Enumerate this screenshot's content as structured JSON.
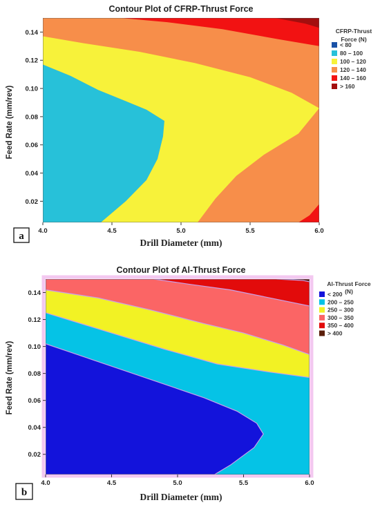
{
  "colors": {
    "c_blue": "#1a52a7",
    "c_cyan": "#27c1d9",
    "c_yellow": "#f7f23a",
    "c_orange": "#f78e4a",
    "c_red": "#f21212",
    "c_darkred": "#a30f0f",
    "a_blue": "#1313db",
    "a_cyan": "#05c3e6",
    "a_yellow": "#f2f224",
    "a_salmon": "#fb6565",
    "a_red": "#e20b0b",
    "a_brown": "#5a1e0a"
  },
  "chart_data": [
    {
      "type": "contour",
      "panel": "a",
      "title": "Contour Plot of CFRP-Thrust Force",
      "xlabel": "Drill Diameter (mm)",
      "ylabel": "Feed Rate (mm/rev)",
      "xlim": [
        4.0,
        6.0
      ],
      "ylim": [
        0.005,
        0.15
      ],
      "xticks": [
        "4.0",
        "4.5",
        "5.0",
        "5.5",
        "6.0"
      ],
      "yticks": [
        "0.02",
        "0.04",
        "0.06",
        "0.08",
        "0.10",
        "0.12",
        "0.14"
      ],
      "legend_title": [
        "CFRP-Thrust",
        "Force (N)"
      ],
      "legend": [
        {
          "range": "<  80",
          "color": "#1a52a7"
        },
        {
          "range": "80  –  100",
          "color": "#27c1d9"
        },
        {
          "range": "100  –  120",
          "color": "#f7f23a"
        },
        {
          "range": "120  –  140",
          "color": "#f78e4a"
        },
        {
          "range": "140  –  160",
          "color": "#f21212"
        },
        {
          "range": ">  160",
          "color": "#a30f0f"
        }
      ],
      "legend_placement": "right",
      "regions": [
        {
          "range": "80 – 100",
          "color": "#27c1d9",
          "boundary": [
            [
              4.0,
              0.117
            ],
            [
              4.2,
              0.109
            ],
            [
              4.4,
              0.099
            ],
            [
              4.6,
              0.091
            ],
            [
              4.75,
              0.085
            ],
            [
              4.88,
              0.077
            ],
            [
              4.87,
              0.066
            ],
            [
              4.83,
              0.05
            ],
            [
              4.75,
              0.035
            ],
            [
              4.6,
              0.02
            ],
            [
              4.42,
              0.005
            ],
            [
              4.0,
              0.005
            ]
          ]
        },
        {
          "range": "100 – 120",
          "color": "#f7f23a",
          "boundary": [
            [
              4.0,
              0.137
            ],
            [
              4.3,
              0.132
            ],
            [
              4.7,
              0.126
            ],
            [
              5.1,
              0.118
            ],
            [
              5.5,
              0.108
            ],
            [
              5.8,
              0.097
            ],
            [
              6.0,
              0.086
            ],
            [
              5.85,
              0.068
            ],
            [
              5.6,
              0.053
            ],
            [
              5.4,
              0.038
            ],
            [
              5.25,
              0.022
            ],
            [
              5.12,
              0.005
            ],
            [
              4.42,
              0.005
            ],
            [
              4.6,
              0.02
            ],
            [
              4.75,
              0.035
            ],
            [
              4.83,
              0.05
            ],
            [
              4.87,
              0.066
            ],
            [
              4.88,
              0.077
            ],
            [
              4.75,
              0.085
            ],
            [
              4.6,
              0.091
            ],
            [
              4.4,
              0.099
            ],
            [
              4.2,
              0.109
            ],
            [
              4.0,
              0.117
            ]
          ]
        },
        {
          "range": "140 – 160",
          "color": "#f21212",
          "boundary": [
            [
              4.56,
              0.15
            ],
            [
              4.9,
              0.147
            ],
            [
              5.3,
              0.142
            ],
            [
              5.7,
              0.135
            ],
            [
              6.0,
              0.13
            ],
            [
              6.0,
              0.15
            ]
          ]
        },
        {
          "range": "> 160",
          "color": "#a30f0f",
          "boundary": [
            [
              5.68,
              0.15
            ],
            [
              5.9,
              0.146
            ],
            [
              6.0,
              0.143
            ],
            [
              6.0,
              0.15
            ]
          ]
        },
        {
          "range": "140 – 160",
          "color": "#f21212",
          "boundary": [
            [
              5.85,
              0.005
            ],
            [
              6.0,
              0.005
            ],
            [
              6.0,
              0.018
            ],
            [
              5.93,
              0.01
            ]
          ]
        }
      ]
    },
    {
      "type": "contour",
      "panel": "b",
      "title": "Contour Plot of Al-Thrust Force",
      "xlabel": "Drill Diameter (mm)",
      "ylabel": "Feed Rate (mm/rev)",
      "xlim": [
        4.0,
        6.0
      ],
      "ylim": [
        0.005,
        0.15
      ],
      "xticks": [
        "4.0",
        "4.5",
        "5.0",
        "5.5",
        "6.0"
      ],
      "yticks": [
        "0.02",
        "0.04",
        "0.06",
        "0.08",
        "0.10",
        "0.12",
        "0.14"
      ],
      "legend_title": [
        "Al-Thrust Force",
        "(N)"
      ],
      "legend": [
        {
          "range": "<  200",
          "color": "#1313db"
        },
        {
          "range": "200  –  250",
          "color": "#05c3e6"
        },
        {
          "range": "250  –  300",
          "color": "#f2f224"
        },
        {
          "range": "300  –  350",
          "color": "#fb6565"
        },
        {
          "range": "350  –  400",
          "color": "#e20b0b"
        },
        {
          "range": ">  400",
          "color": "#5a1e0a"
        }
      ],
      "legend_placement": "right",
      "regions": [
        {
          "range": "250 – 300",
          "color": "#f2f224",
          "boundary": [
            [
              4.0,
              0.142
            ],
            [
              4.4,
              0.136
            ],
            [
              4.8,
              0.127
            ],
            [
              5.2,
              0.117
            ],
            [
              5.5,
              0.11
            ],
            [
              5.8,
              0.101
            ],
            [
              6.0,
              0.094
            ],
            [
              6.0,
              0.077
            ],
            [
              5.7,
              0.081
            ],
            [
              5.3,
              0.087
            ],
            [
              4.9,
              0.098
            ],
            [
              4.5,
              0.11
            ],
            [
              4.2,
              0.119
            ],
            [
              4.0,
              0.125
            ]
          ]
        },
        {
          "range": "300 – 350",
          "color": "#fb6565",
          "boundary": [
            [
              4.0,
              0.15
            ],
            [
              6.0,
              0.15
            ],
            [
              6.0,
              0.094
            ],
            [
              5.8,
              0.101
            ],
            [
              5.5,
              0.11
            ],
            [
              5.2,
              0.117
            ],
            [
              4.8,
              0.127
            ],
            [
              4.4,
              0.136
            ],
            [
              4.0,
              0.142
            ]
          ]
        },
        {
          "range": "350 – 400",
          "color": "#e20b0b",
          "boundary": [
            [
              4.82,
              0.15
            ],
            [
              5.1,
              0.146
            ],
            [
              5.4,
              0.142
            ],
            [
              5.7,
              0.136
            ],
            [
              6.0,
              0.13
            ],
            [
              6.0,
              0.15
            ]
          ]
        },
        {
          "range": "> 400",
          "color": "#5a1e0a",
          "boundary": [
            [
              5.75,
              0.15
            ],
            [
              5.95,
              0.149
            ],
            [
              6.0,
              0.148
            ],
            [
              6.0,
              0.15
            ]
          ]
        },
        {
          "range": "< 200",
          "color": "#1313db",
          "boundary": [
            [
              4.0,
              0.102
            ],
            [
              4.3,
              0.092
            ],
            [
              4.6,
              0.082
            ],
            [
              4.9,
              0.072
            ],
            [
              5.2,
              0.062
            ],
            [
              5.45,
              0.052
            ],
            [
              5.6,
              0.043
            ],
            [
              5.65,
              0.035
            ],
            [
              5.58,
              0.025
            ],
            [
              5.4,
              0.012
            ],
            [
              5.28,
              0.005
            ],
            [
              4.0,
              0.005
            ]
          ]
        }
      ]
    }
  ]
}
